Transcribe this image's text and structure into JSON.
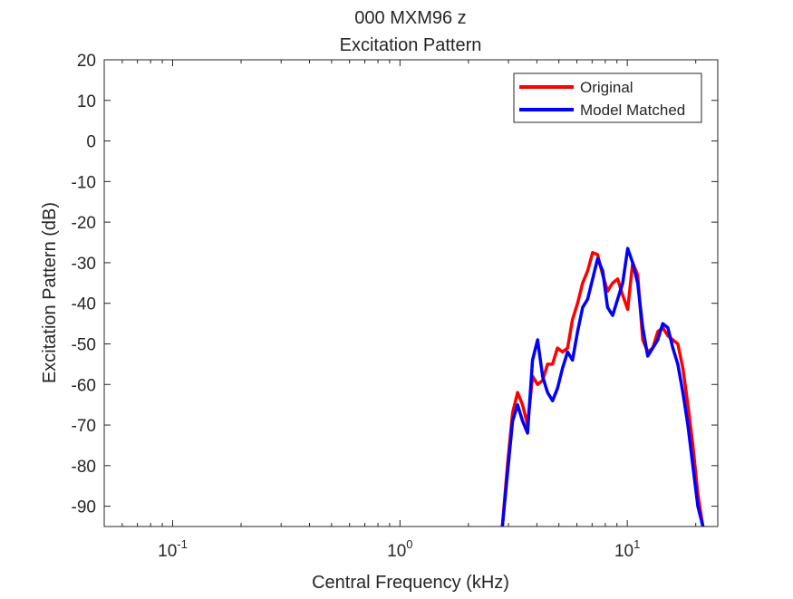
{
  "chart_data": {
    "type": "line",
    "title": "000 MXM96 z",
    "subtitle": "Excitation Pattern",
    "xlabel": "Central Frequency (kHz)",
    "ylabel": "Excitation Pattern (dB)",
    "xscale": "log",
    "xlim": [
      0.05,
      25
    ],
    "ylim": [
      -95,
      20
    ],
    "x_ticks": [
      {
        "value": 0.1,
        "base": "10",
        "exp": "-1"
      },
      {
        "value": 1,
        "base": "10",
        "exp": "0"
      },
      {
        "value": 10,
        "base": "10",
        "exp": "1"
      }
    ],
    "y_ticks": [
      "20",
      "10",
      "0",
      "-10",
      "-20",
      "-30",
      "-40",
      "-50",
      "-60",
      "-70",
      "-80",
      "-90"
    ],
    "grid": false,
    "legend_position": "top-right",
    "series": [
      {
        "name": "Original",
        "color": "#ff0000",
        "x": [
          2.82,
          2.97,
          3.13,
          3.29,
          3.46,
          3.64,
          3.83,
          4.03,
          4.24,
          4.46,
          4.69,
          4.93,
          5.19,
          5.46,
          5.74,
          6.04,
          6.36,
          6.69,
          7.04,
          7.4,
          7.79,
          8.19,
          8.62,
          9.07,
          9.54,
          10.04,
          10.56,
          11.11,
          11.69,
          12.3,
          12.94,
          13.61,
          14.32,
          15.07,
          15.85,
          16.68,
          17.55,
          18.46,
          19.42,
          20.43,
          21.5
        ],
        "y": [
          -95,
          -80,
          -67,
          -62,
          -65,
          -70,
          -58,
          -60,
          -59,
          -55,
          -55,
          -51,
          -52,
          -51,
          -44,
          -40,
          -35,
          -32,
          -27.5,
          -28,
          -33,
          -37,
          -35,
          -34,
          -38,
          -41.5,
          -30,
          -33,
          -49,
          -52,
          -51,
          -47,
          -46,
          -48,
          -49,
          -50,
          -56,
          -65,
          -75,
          -87,
          -95
        ]
      },
      {
        "name": "Model Matched",
        "color": "#0000ff",
        "x": [
          2.82,
          2.97,
          3.13,
          3.29,
          3.46,
          3.64,
          3.83,
          4.03,
          4.24,
          4.46,
          4.69,
          4.93,
          5.19,
          5.46,
          5.74,
          6.04,
          6.36,
          6.69,
          7.04,
          7.4,
          7.79,
          8.19,
          8.62,
          9.07,
          9.54,
          10.04,
          10.56,
          11.11,
          11.69,
          12.3,
          12.94,
          13.61,
          14.32,
          15.07,
          15.85,
          16.68,
          17.55,
          18.46,
          19.42,
          20.43,
          21.5
        ],
        "y": [
          -95,
          -82,
          -69,
          -65,
          -69,
          -72,
          -54,
          -49,
          -58,
          -62,
          -64,
          -61,
          -56,
          -52,
          -54,
          -47,
          -41,
          -39,
          -34,
          -29,
          -32,
          -41,
          -43,
          -39,
          -35,
          -26.5,
          -30,
          -35,
          -46,
          -53,
          -51,
          -49,
          -45,
          -46,
          -51,
          -55,
          -62,
          -70,
          -80,
          -90,
          -95
        ]
      }
    ]
  }
}
